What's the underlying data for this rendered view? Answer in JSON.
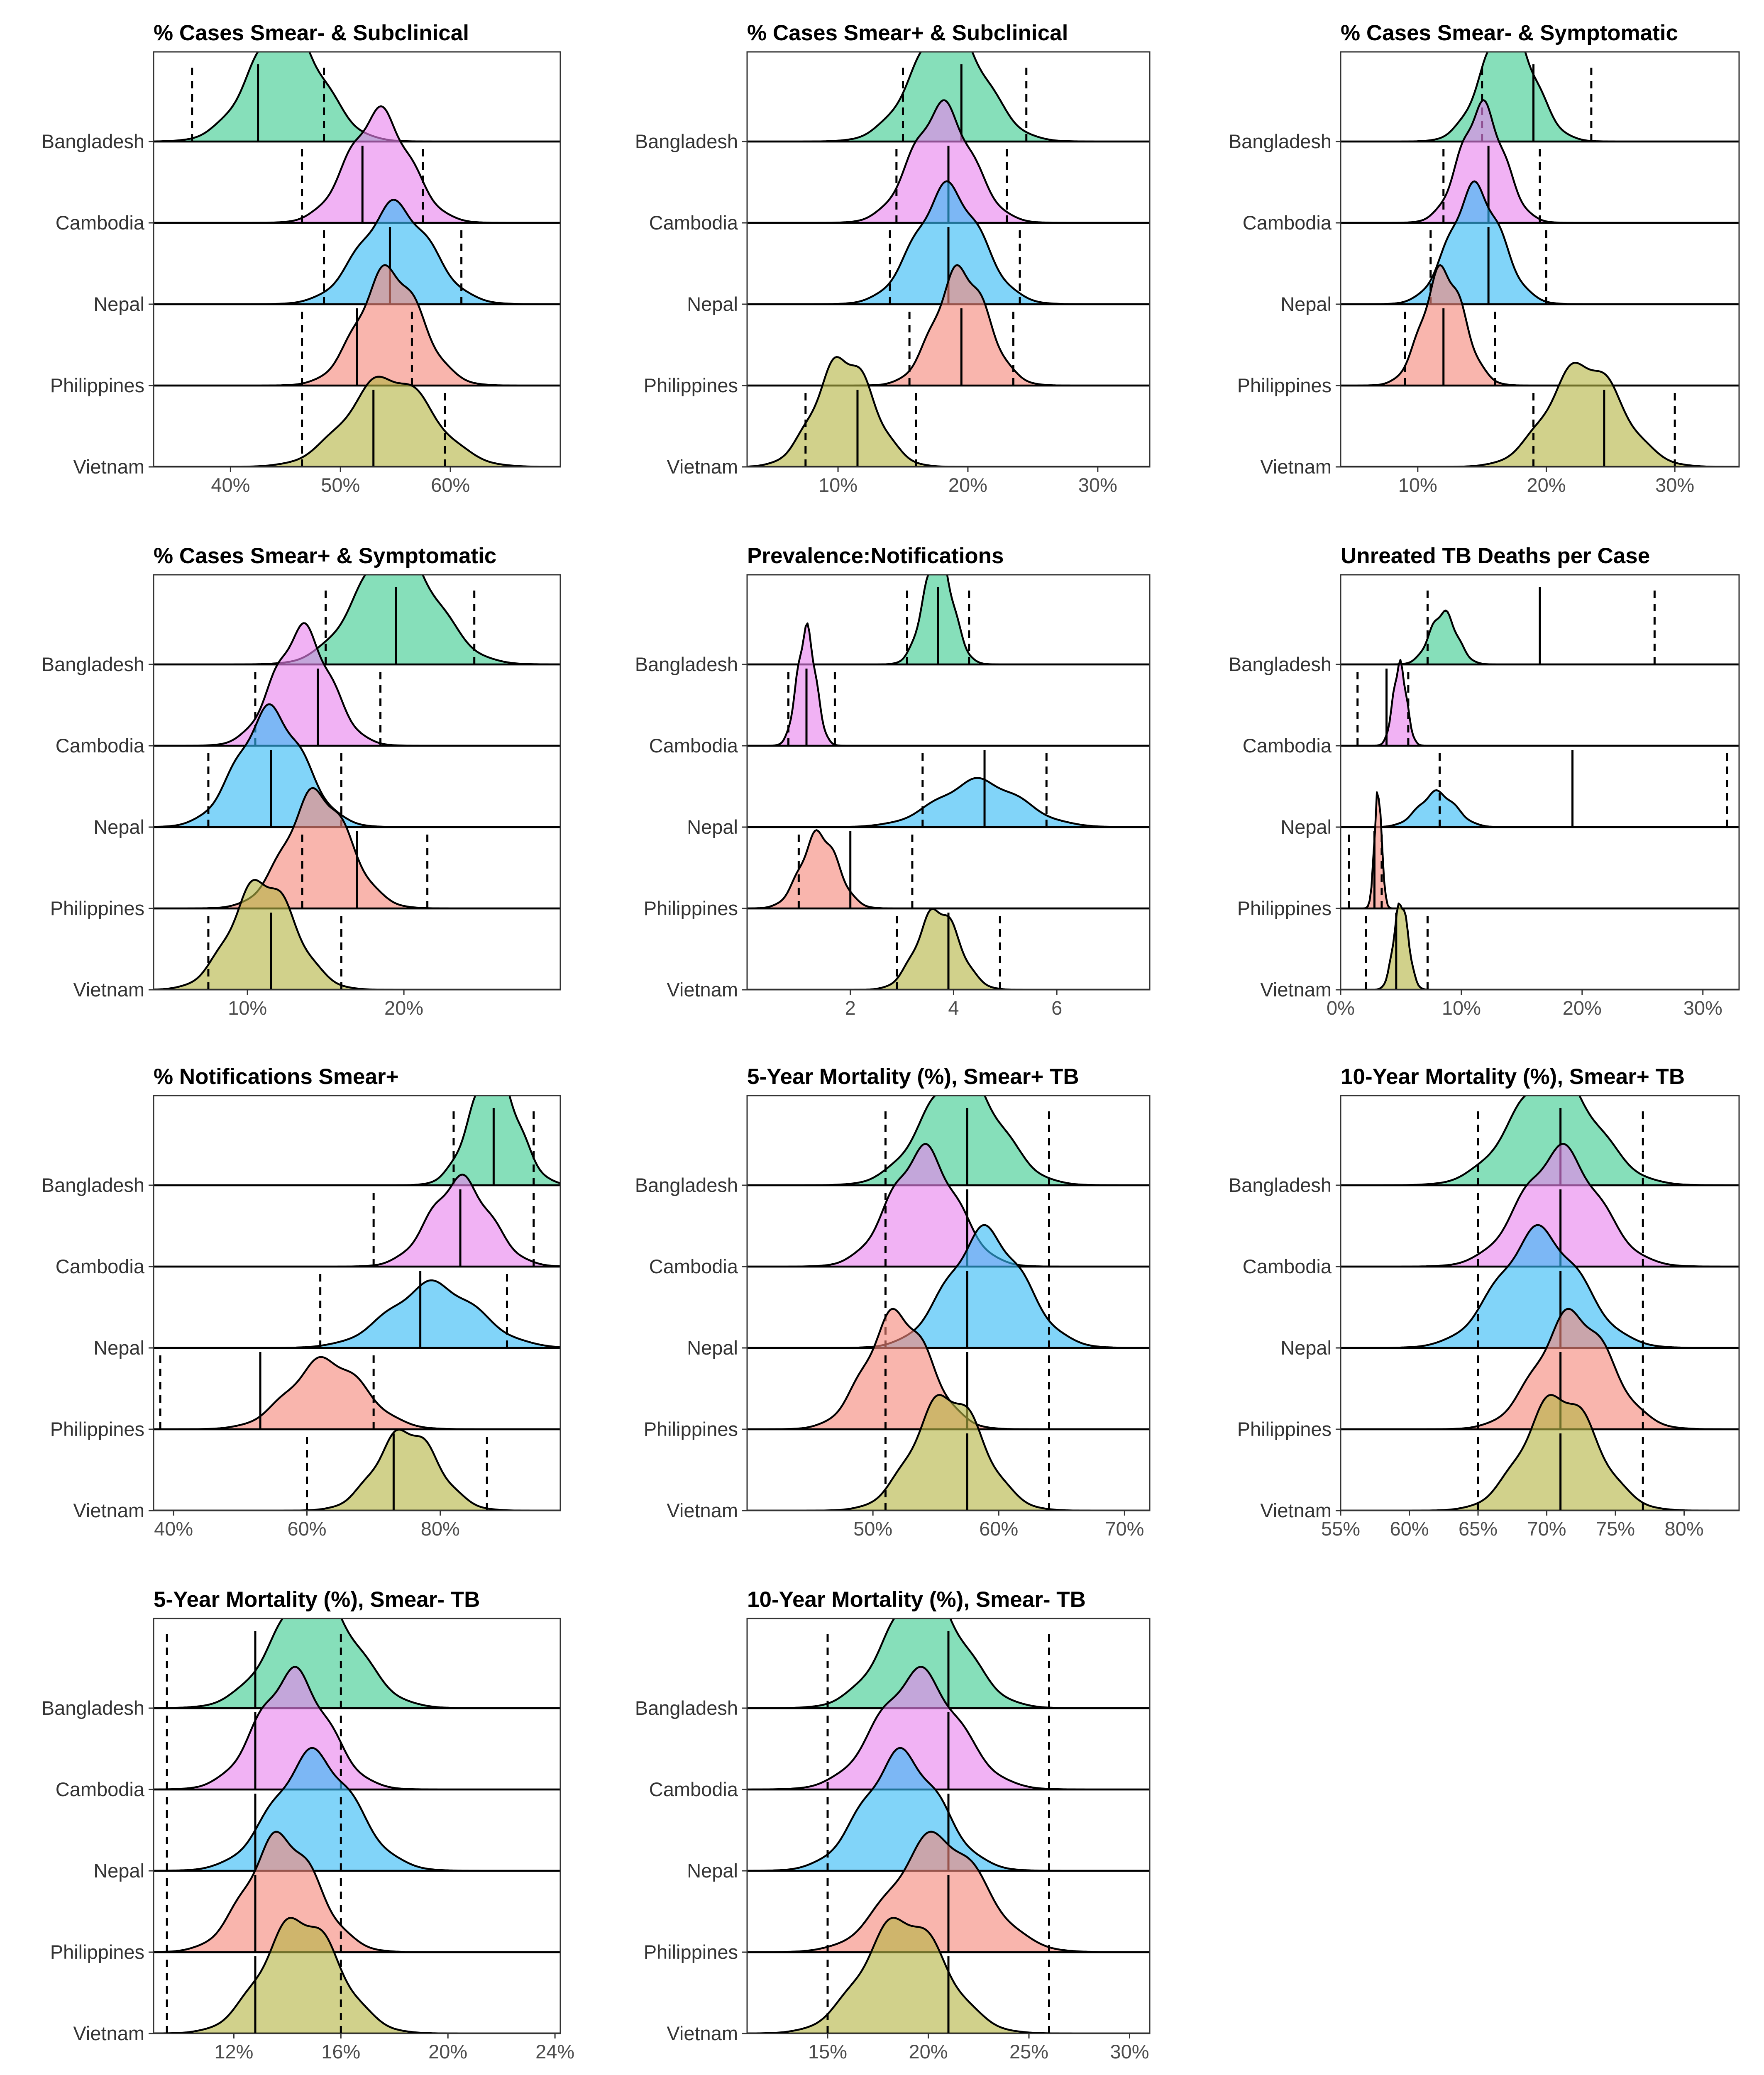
{
  "chart_data": {
    "type": "ridgeline",
    "countries": [
      "Bangladesh",
      "Cambodia",
      "Nepal",
      "Philippines",
      "Vietnam"
    ],
    "colors": {
      "Bangladesh": "#3bcc8f",
      "Cambodia": "#e882ee",
      "Nepal": "#34baf5",
      "Philippines": "#f5877a",
      "Vietnam": "#b5b544"
    },
    "panels": [
      {
        "title": "% Cases Smear- & Subclinical",
        "xlim": [
          33,
          70
        ],
        "ticks": [
          {
            "v": 40,
            "label": "40%"
          },
          {
            "v": 50,
            "label": "50%"
          },
          {
            "v": 60,
            "label": "60%"
          }
        ],
        "refs": [
          36.5,
          48.5,
          46.5,
          57.5,
          48.5,
          61,
          46.5,
          56.5,
          46.5,
          59.5
        ],
        "series": [
          {
            "name": "Bangladesh",
            "mean": 45,
            "sd": 3.2,
            "height": 1.0,
            "median": 42.5,
            "lo": 36.5,
            "hi": 48.5
          },
          {
            "name": "Cambodia",
            "mean": 53.5,
            "sd": 2.8,
            "height": 0.95,
            "median": 52,
            "lo": 46.5,
            "hi": 57.5
          },
          {
            "name": "Nepal",
            "mean": 55,
            "sd": 3.2,
            "height": 0.85,
            "median": 54.5,
            "lo": 48.5,
            "hi": 61
          },
          {
            "name": "Philippines",
            "mean": 54.5,
            "sd": 2.8,
            "height": 1.0,
            "median": 51.5,
            "lo": 46.5,
            "hi": 56.5
          },
          {
            "name": "Vietnam",
            "mean": 54.5,
            "sd": 3.8,
            "height": 0.78,
            "median": 53,
            "lo": 46.5,
            "hi": 59.5
          }
        ]
      },
      {
        "title": "% Cases Smear+ & Subclinical",
        "xlim": [
          3,
          34
        ],
        "ticks": [
          {
            "v": 10,
            "label": "10%"
          },
          {
            "v": 20,
            "label": "20%"
          },
          {
            "v": 30,
            "label": "30%"
          }
        ],
        "series": [
          {
            "name": "Bangladesh",
            "mean": 18.5,
            "sd": 2.7,
            "height": 1.0,
            "median": 19.5,
            "lo": 15,
            "hi": 24.5
          },
          {
            "name": "Cambodia",
            "mean": 18,
            "sd": 2.3,
            "height": 1.0,
            "median": 18.5,
            "lo": 14.5,
            "hi": 23
          },
          {
            "name": "Nepal",
            "mean": 18.5,
            "sd": 2.5,
            "height": 1.0,
            "median": 18.5,
            "lo": 14,
            "hi": 24
          },
          {
            "name": "Philippines",
            "mean": 19.5,
            "sd": 2.0,
            "height": 1.0,
            "median": 19.5,
            "lo": 15.5,
            "hi": 23.5
          },
          {
            "name": "Vietnam",
            "mean": 10.5,
            "sd": 2.2,
            "height": 0.95,
            "median": 11.5,
            "lo": 7.5,
            "hi": 16
          }
        ]
      },
      {
        "title": "% Cases Smear- & Symptomatic",
        "xlim": [
          4,
          35
        ],
        "ticks": [
          {
            "v": 10,
            "label": "10%"
          },
          {
            "v": 20,
            "label": "20%"
          },
          {
            "v": 30,
            "label": "30%"
          }
        ],
        "series": [
          {
            "name": "Bangladesh",
            "mean": 17,
            "sd": 2.0,
            "height": 1.0,
            "median": 19,
            "lo": 15,
            "hi": 23.5
          },
          {
            "name": "Cambodia",
            "mean": 15,
            "sd": 1.7,
            "height": 1.0,
            "median": 15.5,
            "lo": 12,
            "hi": 19.5
          },
          {
            "name": "Nepal",
            "mean": 14.5,
            "sd": 2.0,
            "height": 1.0,
            "median": 15.5,
            "lo": 11,
            "hi": 20
          },
          {
            "name": "Philippines",
            "mean": 12,
            "sd": 1.6,
            "height": 1.0,
            "median": 12,
            "lo": 9,
            "hi": 16
          },
          {
            "name": "Vietnam",
            "mean": 23,
            "sd": 2.8,
            "height": 0.9,
            "median": 24.5,
            "lo": 19,
            "hi": 30
          }
        ]
      },
      {
        "title": "% Cases Smear+ & Symptomatic",
        "xlim": [
          4,
          30
        ],
        "ticks": [
          {
            "v": 10,
            "label": "10%"
          },
          {
            "v": 20,
            "label": "20%"
          }
        ],
        "series": [
          {
            "name": "Bangladesh",
            "mean": 19.5,
            "sd": 2.5,
            "height": 1.0,
            "median": 19.5,
            "lo": 15,
            "hi": 24.5
          },
          {
            "name": "Cambodia",
            "mean": 13.5,
            "sd": 1.8,
            "height": 1.0,
            "median": 14.5,
            "lo": 10.5,
            "hi": 18.5
          },
          {
            "name": "Nepal",
            "mean": 11.5,
            "sd": 2.1,
            "height": 1.0,
            "median": 11.5,
            "lo": 7.5,
            "hi": 16
          },
          {
            "name": "Philippines",
            "mean": 14.5,
            "sd": 2.0,
            "height": 1.0,
            "median": 17,
            "lo": 13.5,
            "hi": 21.5
          },
          {
            "name": "Vietnam",
            "mean": 11,
            "sd": 2.0,
            "height": 0.95,
            "median": 11.5,
            "lo": 7.5,
            "hi": 16
          }
        ]
      },
      {
        "title": "Prevalence:Notifications",
        "xlim": [
          0,
          7.8
        ],
        "ticks": [
          {
            "v": 2,
            "label": "2"
          },
          {
            "v": 4,
            "label": "4"
          },
          {
            "v": 6,
            "label": "6"
          }
        ],
        "series": [
          {
            "name": "Bangladesh",
            "mean": 3.7,
            "sd": 0.28,
            "height": 0.95,
            "median": 3.7,
            "lo": 3.1,
            "hi": 4.3
          },
          {
            "name": "Cambodia",
            "mean": 1.15,
            "sd": 0.18,
            "height": 1.0,
            "median": 1.15,
            "lo": 0.8,
            "hi": 1.7
          },
          {
            "name": "Nepal",
            "mean": 4.5,
            "sd": 0.8,
            "height": 0.4,
            "median": 4.6,
            "lo": 3.4,
            "hi": 5.8
          },
          {
            "name": "Philippines",
            "mean": 1.4,
            "sd": 0.35,
            "height": 0.65,
            "median": 2.0,
            "lo": 1.0,
            "hi": 3.2
          },
          {
            "name": "Vietnam",
            "mean": 3.7,
            "sd": 0.4,
            "height": 0.7,
            "median": 3.9,
            "lo": 2.9,
            "hi": 4.9
          }
        ]
      },
      {
        "title": "Unreated TB Deaths per Case",
        "xlim": [
          0,
          33
        ],
        "ticks": [
          {
            "v": 0,
            "label": "0%"
          },
          {
            "v": 10,
            "label": "10%"
          },
          {
            "v": 20,
            "label": "20%"
          },
          {
            "v": 30,
            "label": "30%"
          }
        ],
        "series": [
          {
            "name": "Bangladesh",
            "mean": 8.5,
            "sd": 1.1,
            "height": 0.45,
            "median": 16.5,
            "lo": 7.2,
            "hi": 26
          },
          {
            "name": "Cambodia",
            "mean": 4.9,
            "sd": 0.55,
            "height": 0.7,
            "median": 3.8,
            "lo": 1.4,
            "hi": 5.6
          },
          {
            "name": "Nepal",
            "mean": 8,
            "sd": 1.5,
            "height": 0.3,
            "median": 19.2,
            "lo": 8.2,
            "hi": 32
          },
          {
            "name": "Philippines",
            "mean": 3.1,
            "sd": 0.3,
            "height": 1.0,
            "median": 2.8,
            "lo": 0.7,
            "hi": 3.4
          },
          {
            "name": "Vietnam",
            "mean": 5,
            "sd": 0.6,
            "height": 0.75,
            "median": 4.6,
            "lo": 2.1,
            "hi": 7.2
          }
        ]
      },
      {
        "title": "% Notifications Smear+",
        "xlim": [
          37,
          98
        ],
        "ticks": [
          {
            "v": 40,
            "label": "40%"
          },
          {
            "v": 60,
            "label": "60%"
          },
          {
            "v": 80,
            "label": "80%"
          }
        ],
        "series": [
          {
            "name": "Bangladesh",
            "mean": 88,
            "sd": 3.5,
            "height": 1.0,
            "median": 88,
            "lo": 82,
            "hi": 94
          },
          {
            "name": "Cambodia",
            "mean": 83,
            "sd": 4.5,
            "height": 0.75,
            "median": 83,
            "lo": 70,
            "hi": 94
          },
          {
            "name": "Nepal",
            "mean": 79,
            "sd": 6.5,
            "height": 0.55,
            "median": 77,
            "lo": 62,
            "hi": 90
          },
          {
            "name": "Philippines",
            "mean": 63,
            "sd": 5.5,
            "height": 0.6,
            "median": 53,
            "lo": 38,
            "hi": 70
          },
          {
            "name": "Vietnam",
            "mean": 75,
            "sd": 4.5,
            "height": 0.7,
            "median": 73,
            "lo": 60,
            "hi": 87
          }
        ]
      },
      {
        "title": "5-Year Mortality (%), Smear+ TB",
        "xlim": [
          40,
          72
        ],
        "ticks": [
          {
            "v": 50,
            "label": "50%"
          },
          {
            "v": 60,
            "label": "60%"
          },
          {
            "v": 70,
            "label": "70%"
          }
        ],
        "series": [
          {
            "name": "Bangladesh",
            "mean": 57,
            "sd": 3.0,
            "height": 0.95,
            "median": 57.5,
            "lo": 51,
            "hi": 64
          },
          {
            "name": "Cambodia",
            "mean": 54,
            "sd": 2.6,
            "height": 1.0,
            "median": 57.5,
            "lo": 51,
            "hi": 64
          },
          {
            "name": "Nepal",
            "mean": 59,
            "sd": 3.0,
            "height": 1.0,
            "median": 57.5,
            "lo": 51,
            "hi": 64
          },
          {
            "name": "Philippines",
            "mean": 52,
            "sd": 2.5,
            "height": 1.0,
            "median": 57.5,
            "lo": 51,
            "hi": 64
          },
          {
            "name": "Vietnam",
            "mean": 56,
            "sd": 2.7,
            "height": 1.0,
            "median": 57.5,
            "lo": 51,
            "hi": 64
          }
        ]
      },
      {
        "title": "10-Year Mortality (%), Smear+ TB",
        "xlim": [
          55,
          84
        ],
        "ticks": [
          {
            "v": 55,
            "label": "55%"
          },
          {
            "v": 60,
            "label": "60%"
          },
          {
            "v": 65,
            "label": "65%"
          },
          {
            "v": 70,
            "label": "70%"
          },
          {
            "v": 75,
            "label": "75%"
          },
          {
            "v": 80,
            "label": "80%"
          }
        ],
        "series": [
          {
            "name": "Bangladesh",
            "mean": 70.5,
            "sd": 3.0,
            "height": 0.95,
            "median": 71,
            "lo": 65,
            "hi": 77
          },
          {
            "name": "Cambodia",
            "mean": 71,
            "sd": 2.8,
            "height": 1.0,
            "median": 71,
            "lo": 65,
            "hi": 77
          },
          {
            "name": "Nepal",
            "mean": 69.5,
            "sd": 3.0,
            "height": 1.0,
            "median": 71,
            "lo": 65,
            "hi": 77
          },
          {
            "name": "Philippines",
            "mean": 72,
            "sd": 2.6,
            "height": 1.0,
            "median": 71,
            "lo": 65,
            "hi": 77
          },
          {
            "name": "Vietnam",
            "mean": 71,
            "sd": 2.6,
            "height": 1.0,
            "median": 71,
            "lo": 65,
            "hi": 77
          }
        ]
      },
      {
        "title": "5-Year Mortality (%), Smear- TB",
        "xlim": [
          9,
          24.2
        ],
        "ticks": [
          {
            "v": 12,
            "label": "12%"
          },
          {
            "v": 16,
            "label": "16%"
          },
          {
            "v": 20,
            "label": "20%"
          },
          {
            "v": 24,
            "label": "24%"
          }
        ],
        "series": [
          {
            "name": "Bangladesh",
            "mean": 15,
            "sd": 1.5,
            "height": 1.0,
            "median": 12.8,
            "lo": 9.5,
            "hi": 16
          },
          {
            "name": "Cambodia",
            "mean": 14.2,
            "sd": 1.3,
            "height": 1.0,
            "median": 12.8,
            "lo": 9.5,
            "hi": 16
          },
          {
            "name": "Nepal",
            "mean": 15,
            "sd": 1.5,
            "height": 1.0,
            "median": 12.8,
            "lo": 9.5,
            "hi": 16
          },
          {
            "name": "Philippines",
            "mean": 13.8,
            "sd": 1.3,
            "height": 1.0,
            "median": 12.8,
            "lo": 9.5,
            "hi": 16
          },
          {
            "name": "Vietnam",
            "mean": 14.5,
            "sd": 1.4,
            "height": 1.0,
            "median": 12.8,
            "lo": 9.5,
            "hi": 16
          }
        ]
      },
      {
        "title": "10-Year Mortality (%), Smear- TB",
        "xlim": [
          11,
          31
        ],
        "ticks": [
          {
            "v": 15,
            "label": "15%"
          },
          {
            "v": 20,
            "label": "20%"
          },
          {
            "v": 25,
            "label": "25%"
          },
          {
            "v": 30,
            "label": "30%"
          }
        ],
        "series": [
          {
            "name": "Bangladesh",
            "mean": 19.8,
            "sd": 1.9,
            "height": 1.0,
            "median": 21,
            "lo": 15,
            "hi": 26
          },
          {
            "name": "Cambodia",
            "mean": 19.5,
            "sd": 2.0,
            "height": 1.0,
            "median": 21,
            "lo": 15,
            "hi": 26
          },
          {
            "name": "Nepal",
            "mean": 18.7,
            "sd": 1.9,
            "height": 1.0,
            "median": 21,
            "lo": 15,
            "hi": 26
          },
          {
            "name": "Philippines",
            "mean": 20.5,
            "sd": 2.2,
            "height": 1.0,
            "median": 21,
            "lo": 15,
            "hi": 26
          },
          {
            "name": "Vietnam",
            "mean": 18.8,
            "sd": 2.0,
            "height": 1.0,
            "median": 21,
            "lo": 15,
            "hi": 26
          }
        ]
      }
    ]
  }
}
